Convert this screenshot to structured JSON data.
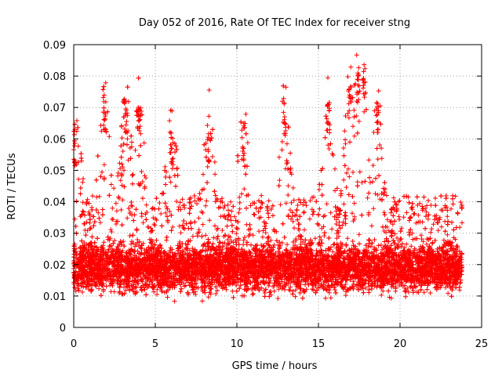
{
  "chart_data": {
    "type": "scatter",
    "title": "Day 052 of 2016, Rate Of TEC Index for receiver stng",
    "xlabel": "GPS time / hours",
    "ylabel": "ROTI / TECUs",
    "xlim": [
      0,
      25
    ],
    "ylim": [
      0,
      0.09
    ],
    "x_ticks": [
      "0",
      "5",
      "10",
      "15",
      "20",
      "25"
    ],
    "y_ticks": [
      "0",
      "0.01",
      "0.02",
      "0.03",
      "0.04",
      "0.05",
      "0.06",
      "0.07",
      "0.08",
      "0.09"
    ],
    "grid": true,
    "marker": "+",
    "marker_color": "#ff0000",
    "series": [
      {
        "name": "ROTI",
        "x_range": [
          0,
          23.8
        ],
        "typical_band": [
          0.008,
          0.03
        ],
        "n_points_approx": 9000,
        "notable_peaks": [
          {
            "x": 0.1,
            "y": 0.063
          },
          {
            "x": 1.9,
            "y": 0.074
          },
          {
            "x": 3.2,
            "y": 0.073
          },
          {
            "x": 4.0,
            "y": 0.073
          },
          {
            "x": 6.0,
            "y": 0.063
          },
          {
            "x": 8.3,
            "y": 0.064
          },
          {
            "x": 10.4,
            "y": 0.065
          },
          {
            "x": 12.9,
            "y": 0.073
          },
          {
            "x": 15.6,
            "y": 0.071
          },
          {
            "x": 16.9,
            "y": 0.078
          },
          {
            "x": 17.4,
            "y": 0.083
          },
          {
            "x": 17.8,
            "y": 0.085
          },
          {
            "x": 18.6,
            "y": 0.072
          }
        ]
      }
    ]
  }
}
